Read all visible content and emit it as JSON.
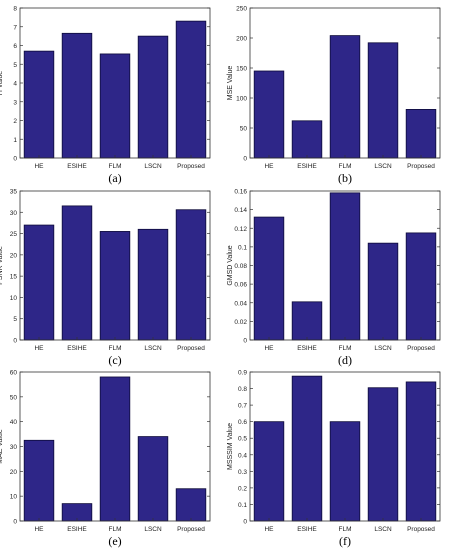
{
  "colors": {
    "bar_fill": "#2e2688",
    "bar_stroke": "#0d0a3a",
    "axis": "#333333",
    "text": "#222222"
  },
  "chart_data": [
    {
      "type": "bar",
      "panel_label": "(a)",
      "categories": [
        "HE",
        "ESIHE",
        "FLM",
        "LSCN",
        "Proposed"
      ],
      "values": [
        5.7,
        6.65,
        5.55,
        6.5,
        7.3
      ],
      "xlabel": "",
      "ylabel": "H Value",
      "ylim": [
        0,
        8
      ],
      "yticks": [
        0,
        1,
        2,
        3,
        4,
        5,
        6,
        7,
        8
      ],
      "grid": false
    },
    {
      "type": "bar",
      "panel_label": "(b)",
      "categories": [
        "HE",
        "ESIHE",
        "FLM",
        "LSCN",
        "Proposed"
      ],
      "values": [
        145,
        62,
        204,
        192,
        81
      ],
      "xlabel": "",
      "ylabel": "MSE Value",
      "ylim": [
        0,
        250
      ],
      "yticks": [
        0,
        50,
        100,
        150,
        200,
        250
      ],
      "grid": false
    },
    {
      "type": "bar",
      "panel_label": "(c)",
      "categories": [
        "HE",
        "ESIHE",
        "FLM",
        "LSCN",
        "Proposed"
      ],
      "values": [
        27,
        31.5,
        25.5,
        26,
        30.6
      ],
      "xlabel": "",
      "ylabel": "PSNR Value",
      "ylim": [
        0,
        35
      ],
      "yticks": [
        0,
        5,
        10,
        15,
        20,
        25,
        30,
        35
      ],
      "grid": false
    },
    {
      "type": "bar",
      "panel_label": "(d)",
      "categories": [
        "HE",
        "ESIHE",
        "FLM",
        "LSCN",
        "Proposed"
      ],
      "values": [
        0.132,
        0.041,
        0.158,
        0.104,
        0.115
      ],
      "xlabel": "",
      "ylabel": "GMSD Value",
      "ylim": [
        0,
        0.16
      ],
      "yticks": [
        0,
        0.02,
        0.04,
        0.06,
        0.08,
        0.1,
        0.12,
        0.14,
        0.16
      ],
      "grid": false
    },
    {
      "type": "bar",
      "panel_label": "(e)",
      "categories": [
        "HE",
        "ESIHE",
        "FLM",
        "LSCN",
        "Proposed"
      ],
      "values": [
        32.5,
        7,
        58,
        34,
        13
      ],
      "xlabel": "",
      "ylabel": "MAE Value",
      "ylim": [
        0,
        60
      ],
      "yticks": [
        0,
        10,
        20,
        30,
        40,
        50,
        60
      ],
      "grid": false
    },
    {
      "type": "bar",
      "panel_label": "(f)",
      "categories": [
        "HE",
        "ESIHE",
        "FLM",
        "LSCN",
        "Proposed"
      ],
      "values": [
        0.6,
        0.875,
        0.6,
        0.805,
        0.84
      ],
      "xlabel": "",
      "ylabel": "MSSSIM Value",
      "ylim": [
        0,
        0.9
      ],
      "yticks": [
        0,
        0.1,
        0.2,
        0.3,
        0.4,
        0.5,
        0.6,
        0.7,
        0.8,
        0.9
      ],
      "grid": false
    }
  ]
}
